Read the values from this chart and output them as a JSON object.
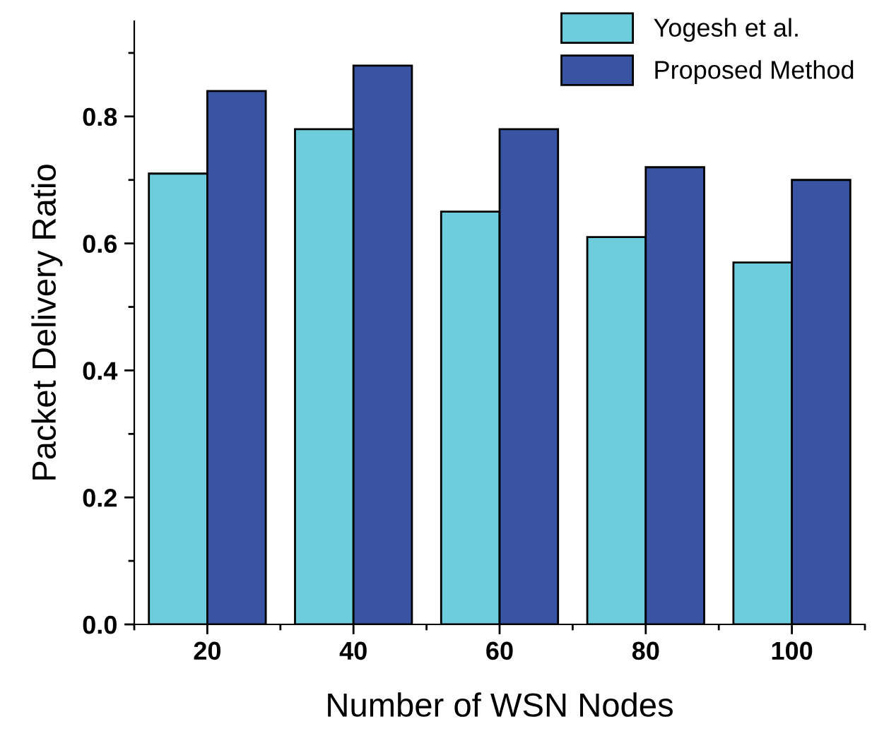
{
  "chart_data": {
    "type": "bar",
    "xlabel": "Number of WSN Nodes",
    "ylabel": "Packet Delivery Ratio",
    "categories": [
      "20",
      "40",
      "60",
      "80",
      "100"
    ],
    "series": [
      {
        "name": "Yogesh et al.",
        "color": "#6dcddd",
        "values": [
          0.71,
          0.78,
          0.65,
          0.61,
          0.57
        ]
      },
      {
        "name": "Proposed Method",
        "color": "#3a54a4",
        "values": [
          0.84,
          0.88,
          0.78,
          0.72,
          0.7
        ]
      }
    ],
    "ylim": [
      0,
      0.95
    ],
    "yticks": [
      {
        "value": 0,
        "label": "0.0"
      },
      {
        "value": 0.2,
        "label": "0.2"
      },
      {
        "value": 0.4,
        "label": "0.4"
      },
      {
        "value": 0.6,
        "label": "0.6"
      },
      {
        "value": 0.8,
        "label": "0.8"
      }
    ],
    "grid": false,
    "legend": "top right"
  }
}
